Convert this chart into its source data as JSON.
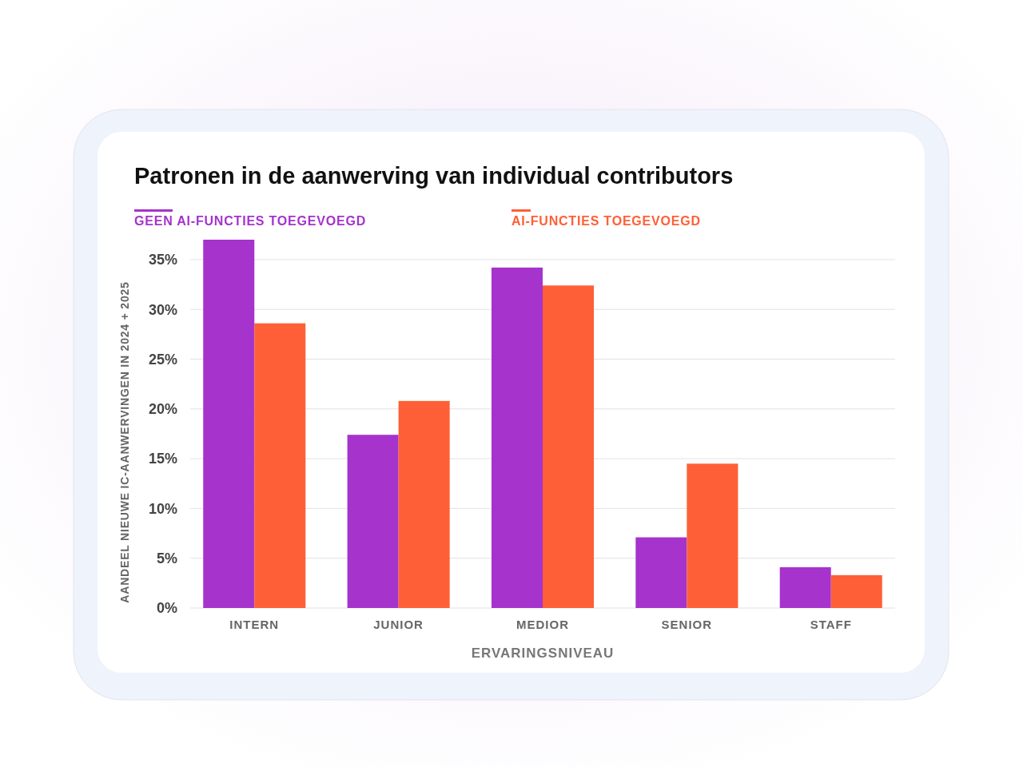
{
  "chart_data": {
    "type": "bar",
    "title": "Patronen in de aanwerving van individual contributors",
    "xlabel": "ERVARINGSNIVEAU",
    "ylabel": "AANDEEL NIEUWE IC-AANWERVINGEN IN 2024 + 2025",
    "categories": [
      "INTERN",
      "JUNIOR",
      "MEDIOR",
      "SENIOR",
      "STAFF"
    ],
    "series": [
      {
        "name": "GEEN AI-FUNCTIES TOEGEVOEGD",
        "color": "#a533cc",
        "values": [
          37,
          17.4,
          34.2,
          7.1,
          4.1
        ]
      },
      {
        "name": "AI-FUNCTIES TOEGEVOEGD",
        "color": "#ff5f36",
        "values": [
          28.6,
          20.8,
          32.4,
          14.5,
          3.3
        ]
      }
    ],
    "ylim": [
      0,
      37
    ],
    "yticks": [
      {
        "value": 0,
        "label": "0%"
      },
      {
        "value": 5,
        "label": "5%"
      },
      {
        "value": 10,
        "label": "10%"
      },
      {
        "value": 15,
        "label": "15%"
      },
      {
        "value": 20,
        "label": "20%"
      },
      {
        "value": 25,
        "label": "25%"
      },
      {
        "value": 30,
        "label": "30%"
      },
      {
        "value": 35,
        "label": "35%"
      }
    ],
    "grid": "y",
    "legend": "top"
  }
}
